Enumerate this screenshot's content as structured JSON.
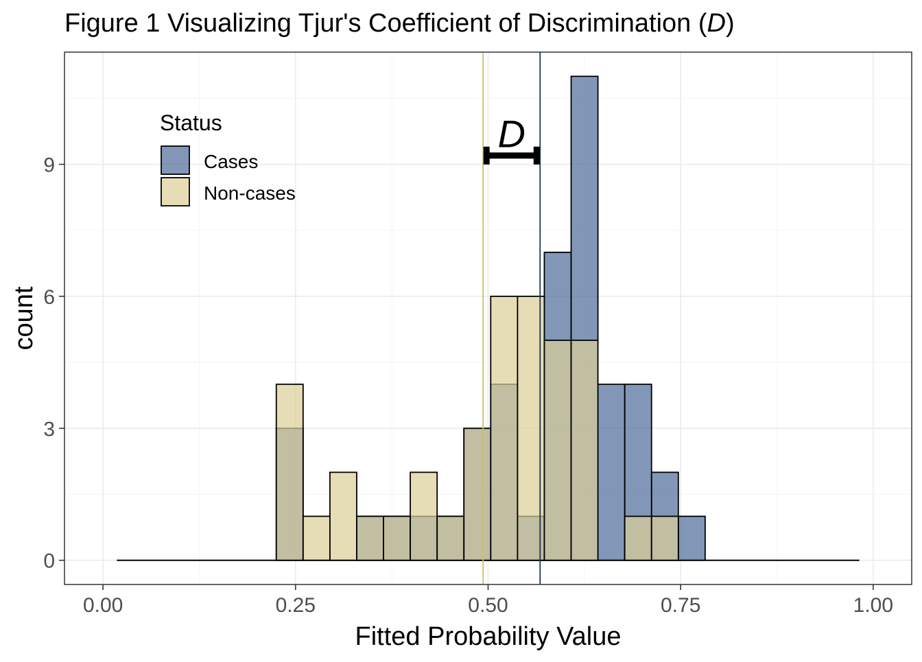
{
  "chart_data": {
    "type": "bar",
    "title_prefix": "Figure 1 Visualizing Tjur's Coefficient of Discrimination (",
    "title_symbol": "D",
    "title_suffix": ")",
    "xlabel": "Fitted Probability Value",
    "ylabel": "count",
    "xlim": [
      -0.05,
      1.05
    ],
    "ylim": [
      -0.55,
      11.55
    ],
    "x_ticks": [
      0.0,
      0.25,
      0.5,
      0.75,
      1.0
    ],
    "x_tick_labels": [
      "0.00",
      "0.25",
      "0.50",
      "0.75",
      "1.00"
    ],
    "y_ticks": [
      0,
      3,
      6,
      9
    ],
    "y_tick_labels": [
      "0",
      "3",
      "6",
      "9"
    ],
    "grid": true,
    "bin_width": 0.0348,
    "bin_starts": [
      0.225,
      0.2598,
      0.2946,
      0.3294,
      0.3642,
      0.399,
      0.4338,
      0.4686,
      0.5034,
      0.5382,
      0.573,
      0.6078,
      0.6426,
      0.6774,
      0.7122,
      0.747
    ],
    "baseline_range": [
      0.018,
      0.982
    ],
    "series": [
      {
        "name": "Cases",
        "color": "#4d6b9a",
        "values": [
          3,
          0,
          0,
          1,
          1,
          1,
          1,
          3,
          4,
          1,
          7,
          11,
          4,
          4,
          2,
          1
        ]
      },
      {
        "name": "Non-cases",
        "color": "#dccf98",
        "values": [
          4,
          1,
          2,
          1,
          1,
          2,
          1,
          3,
          6,
          6,
          5,
          5,
          0,
          1,
          1,
          0
        ]
      }
    ],
    "mean_lines": [
      {
        "series": "Non-cases",
        "x": 0.4935,
        "color": "#c9c06a"
      },
      {
        "series": "Cases",
        "x": 0.5675,
        "color": "#1d3557"
      }
    ],
    "annotation": {
      "text": "D",
      "x_start": 0.4935,
      "x_end": 0.5675,
      "y": 9.2,
      "label_y": 9.7
    },
    "legend": {
      "title": "Status",
      "position": "top-left",
      "entries": [
        "Cases",
        "Non-cases"
      ]
    }
  }
}
